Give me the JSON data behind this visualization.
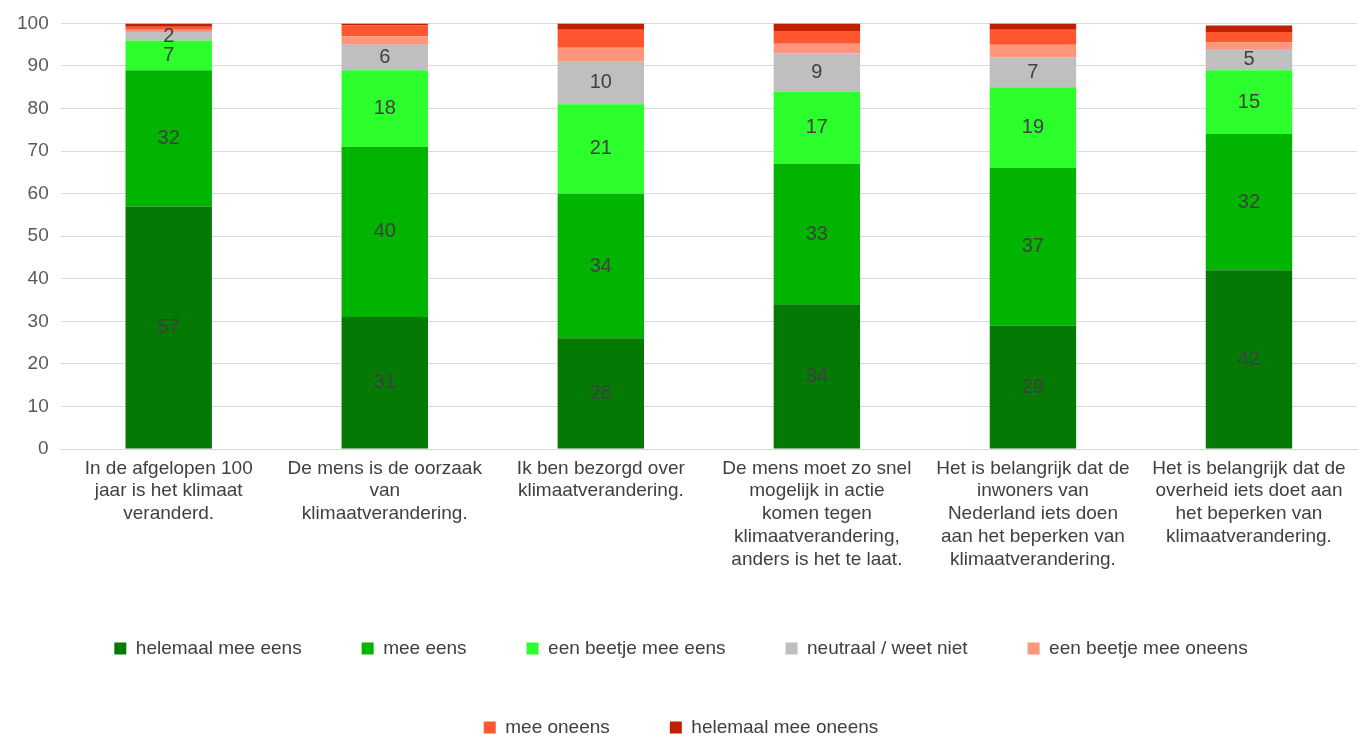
{
  "chart_data": {
    "type": "bar",
    "stacked": true,
    "categories": [
      "In de afgelopen 100 jaar is het klimaat veranderd.",
      "De mens is de oorzaak van klimaatverandering.",
      "Ik ben bezorgd over klimaatverandering.",
      "De mens moet zo snel mogelijk in actie komen tegen klimaatverandering, anders is het te laat.",
      "Het is belangrijk dat de inwoners van Nederland iets doen aan het beperken van klimaatverandering.",
      "Het is belangrijk dat de overheid iets doet aan het beperken van klimaatverandering."
    ],
    "series": [
      {
        "name": "helemaal mee eens",
        "color": "#047a04",
        "values": [
          57,
          31,
          26,
          34,
          29,
          42
        ],
        "value_labels": [
          "57",
          "31",
          "26",
          "34",
          "29",
          "42"
        ]
      },
      {
        "name": "mee eens",
        "color": "#00b400",
        "values": [
          32,
          40,
          34,
          33,
          37,
          32
        ],
        "value_labels": [
          "32",
          "40",
          "34",
          "33",
          "37",
          "32"
        ]
      },
      {
        "name": "een beetje mee eens",
        "color": "#2cff2c",
        "values": [
          7,
          18,
          21,
          17,
          19,
          15
        ],
        "value_labels": [
          "7",
          "18",
          "21",
          "17",
          "19",
          "15"
        ]
      },
      {
        "name": "neutraal / weet niet",
        "color": "#bfbfbf",
        "values": [
          2,
          6,
          10,
          9,
          7,
          5
        ],
        "value_labels": [
          "2",
          "6",
          "10",
          "9",
          "7",
          "5"
        ]
      },
      {
        "name": "een beetje mee oneens",
        "color": "#ff957a",
        "values": [
          0.5,
          2,
          3.3,
          2.2,
          3,
          1.5
        ],
        "value_labels": [
          null,
          null,
          null,
          null,
          null,
          null
        ]
      },
      {
        "name": "mee oneens",
        "color": "#ff5630",
        "values": [
          0.7,
          2.5,
          4.2,
          3,
          3.5,
          2.5
        ],
        "value_labels": [
          null,
          null,
          null,
          null,
          null,
          null
        ]
      },
      {
        "name": "helemaal mee oneens",
        "color": "#c01f00",
        "values": [
          0.8,
          0.5,
          1.5,
          1.8,
          1.5,
          1.5
        ],
        "value_labels": [
          null,
          null,
          null,
          null,
          null,
          null
        ]
      }
    ],
    "ylim": [
      0,
      100
    ],
    "yticks": [
      0,
      10,
      20,
      30,
      40,
      50,
      60,
      70,
      80,
      90,
      100
    ],
    "grid": "y",
    "legend": "bottom"
  }
}
